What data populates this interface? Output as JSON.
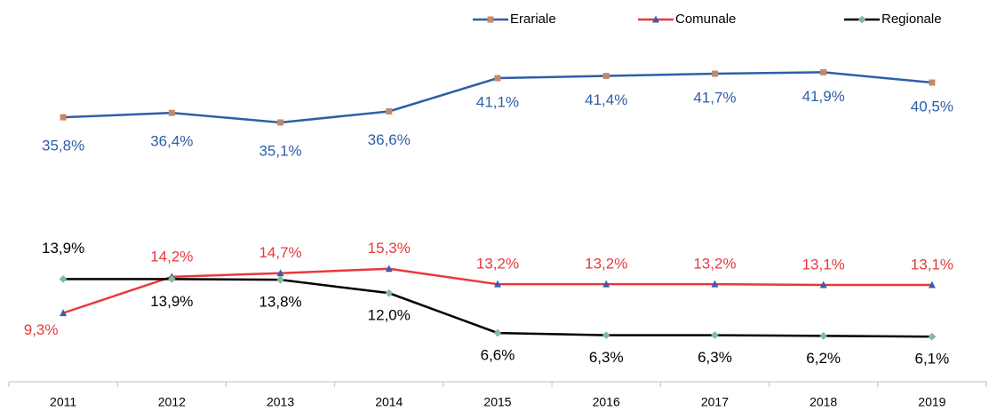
{
  "chart_data": {
    "type": "line",
    "categories": [
      "2011",
      "2012",
      "2013",
      "2014",
      "2015",
      "2016",
      "2017",
      "2018",
      "2019"
    ],
    "series": [
      {
        "name": "Erariale",
        "color": "#2e5ea8",
        "marker_color": "#c38a6a",
        "marker": "square",
        "values": [
          35.8,
          36.4,
          35.1,
          36.6,
          41.1,
          41.4,
          41.7,
          41.9,
          40.5
        ],
        "value_labels": [
          "35,8%",
          "36,4%",
          "35,1%",
          "36,6%",
          "41,1%",
          "41,4%",
          "41,7%",
          "41,9%",
          "40,5%"
        ]
      },
      {
        "name": "Comunale",
        "color": "#e8383d",
        "marker_color": "#3b5cab",
        "marker": "triangle",
        "values": [
          9.3,
          14.2,
          14.7,
          15.3,
          13.2,
          13.2,
          13.2,
          13.1,
          13.1
        ],
        "value_labels": [
          "9,3%",
          "14,2%",
          "14,7%",
          "15,3%",
          "13,2%",
          "13,2%",
          "13,2%",
          "13,1%",
          "13,1%"
        ]
      },
      {
        "name": "Regionale",
        "color": "#000000",
        "marker_color": "#7fbfa0",
        "marker": "diamond",
        "values": [
          13.9,
          13.9,
          13.8,
          12.0,
          6.6,
          6.3,
          6.3,
          6.2,
          6.1
        ],
        "value_labels": [
          "13,9%",
          "13,9%",
          "13,8%",
          "12,0%",
          "6,6%",
          "6,3%",
          "6,3%",
          "6,2%",
          "6,1%"
        ]
      }
    ],
    "ylim": [
      0,
      50
    ],
    "legend": "top-right",
    "grid": false
  }
}
